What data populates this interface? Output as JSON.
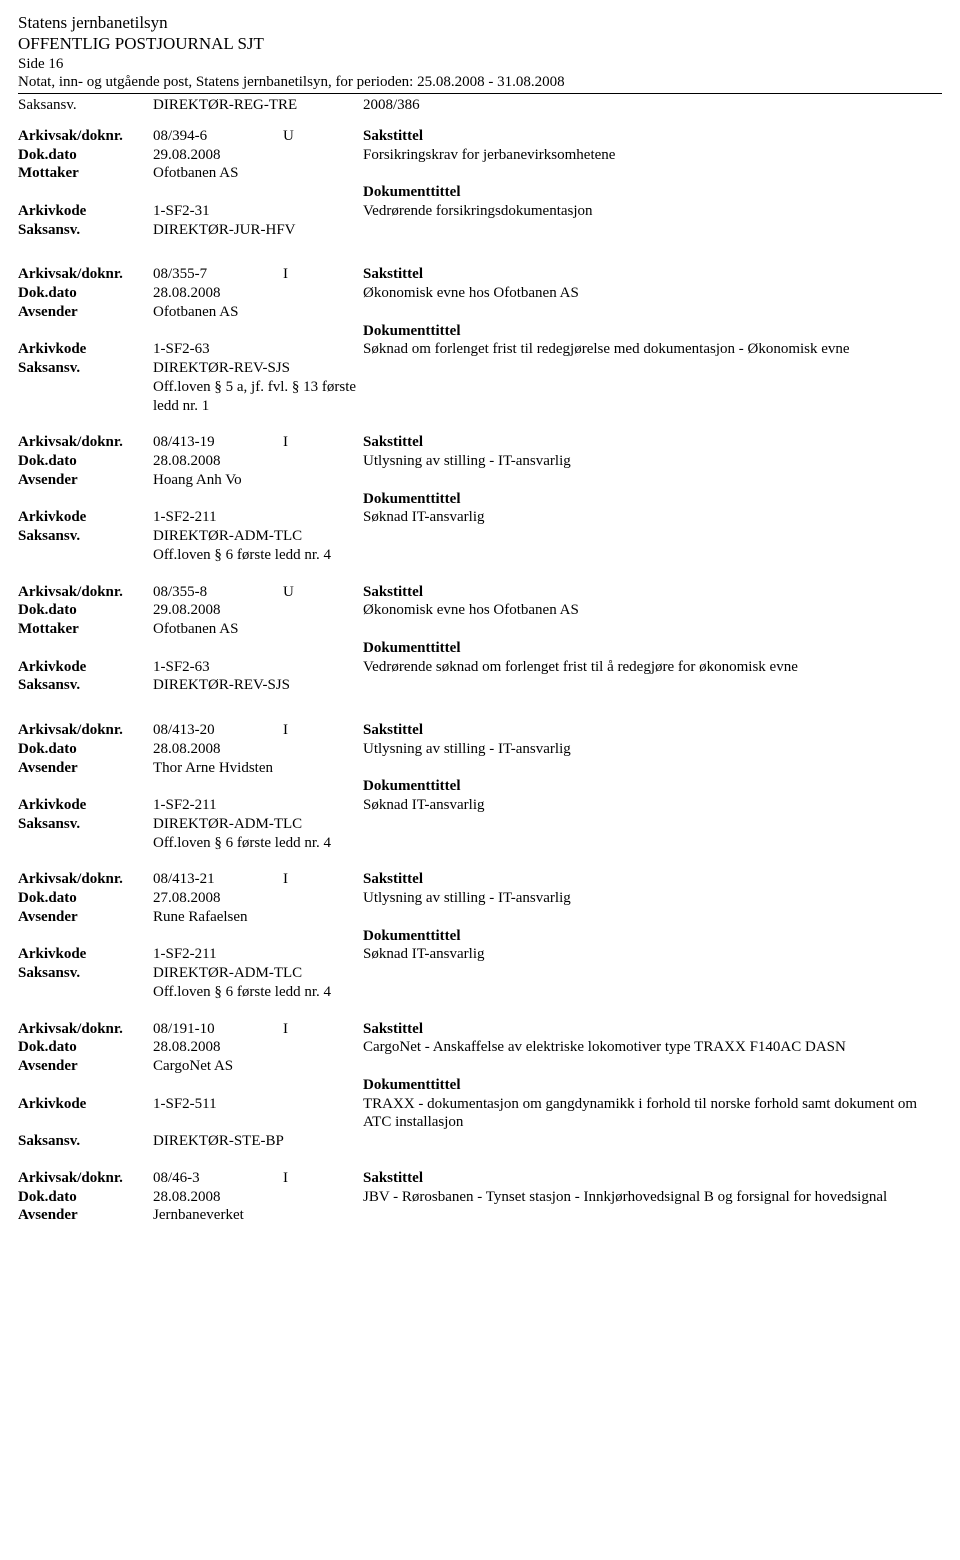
{
  "header": {
    "title": "Statens jernbanetilsyn",
    "subtitle": "OFFENTLIG POSTJOURNAL SJT",
    "side": "Side 16",
    "notat": "Notat, inn- og utgående post, Statens jernbanetilsyn, for perioden: 25.08.2008 - 31.08.2008"
  },
  "labels": {
    "saksansv": "Saksansv.",
    "arkivsak": "Arkivsak/doknr.",
    "dokdato": "Dok.dato",
    "mottaker": "Mottaker",
    "avsender": "Avsender",
    "arkivkode": "Arkivkode",
    "sakstittel": "Sakstittel",
    "dokumenttittel": "Dokumenttittel"
  },
  "topSaksansv": {
    "value": "DIREKTØR-REG-TRE",
    "code": "2008/386"
  },
  "entries": [
    {
      "arkivsak": "08/394-6",
      "dir": "U",
      "dokdato": "29.08.2008",
      "partyLabel": "Mottaker",
      "party": "Ofotbanen AS",
      "arkivkode": "1-SF2-31",
      "saksansv": "DIREKTØR-JUR-HFV",
      "offloven": "",
      "sakstittel": "Forsikringskrav for jerbanevirksomhetene",
      "doktittel": "Vedrørende forsikringsdokumentasjon",
      "spacerAfter": true
    },
    {
      "arkivsak": "08/355-7",
      "dir": "I",
      "dokdato": "28.08.2008",
      "partyLabel": "Avsender",
      "party": "Ofotbanen AS",
      "arkivkode": "1-SF2-63",
      "saksansv": "DIREKTØR-REV-SJS",
      "offloven": "Off.loven § 5 a, jf. fvl. § 13 første ledd nr. 1",
      "sakstittel": "Økonomisk evne hos Ofotbanen AS",
      "doktittel": "Søknad om forlenget frist til redegjørelse med dokumentasjon - Økonomisk evne",
      "spacerAfter": false
    },
    {
      "arkivsak": "08/413-19",
      "dir": "I",
      "dokdato": "28.08.2008",
      "partyLabel": "Avsender",
      "party": "Hoang Anh Vo",
      "arkivkode": "1-SF2-211",
      "saksansv": "DIREKTØR-ADM-TLC",
      "offloven": "Off.loven § 6 første ledd nr. 4",
      "sakstittel": "Utlysning av stilling - IT-ansvarlig",
      "doktittel": "Søknad IT-ansvarlig",
      "spacerAfter": false
    },
    {
      "arkivsak": "08/355-8",
      "dir": "U",
      "dokdato": "29.08.2008",
      "partyLabel": "Mottaker",
      "party": "Ofotbanen AS",
      "arkivkode": "1-SF2-63",
      "saksansv": "DIREKTØR-REV-SJS",
      "offloven": "",
      "sakstittel": "Økonomisk evne hos Ofotbanen AS",
      "doktittel": "Vedrørende søknad om forlenget frist til å redegjøre for økonomisk evne",
      "spacerAfter": true
    },
    {
      "arkivsak": "08/413-20",
      "dir": "I",
      "dokdato": "28.08.2008",
      "partyLabel": "Avsender",
      "party": "Thor Arne Hvidsten",
      "arkivkode": "1-SF2-211",
      "saksansv": "DIREKTØR-ADM-TLC",
      "offloven": "Off.loven § 6 første ledd nr. 4",
      "sakstittel": "Utlysning av stilling - IT-ansvarlig",
      "doktittel": "Søknad IT-ansvarlig",
      "spacerAfter": false
    },
    {
      "arkivsak": "08/413-21",
      "dir": "I",
      "dokdato": "27.08.2008",
      "partyLabel": "Avsender",
      "party": "Rune Rafaelsen",
      "arkivkode": "1-SF2-211",
      "saksansv": "DIREKTØR-ADM-TLC",
      "offloven": "Off.loven § 6 første ledd nr. 4",
      "sakstittel": "Utlysning av stilling - IT-ansvarlig",
      "doktittel": "Søknad IT-ansvarlig",
      "spacerAfter": false
    },
    {
      "arkivsak": "08/191-10",
      "dir": "I",
      "dokdato": "28.08.2008",
      "partyLabel": "Avsender",
      "party": "CargoNet AS",
      "arkivkode": "1-SF2-511",
      "saksansv": "DIREKTØR-STE-BP",
      "offloven": "",
      "sakstittel": "CargoNet - Anskaffelse av elektriske lokomotiver type TRAXX F140AC DASN",
      "doktittel": "TRAXX - dokumentasjon om gangdynamikk i forhold til norske forhold samt dokument om ATC installasjon",
      "spacerAfter": false
    },
    {
      "arkivsak": "08/46-3",
      "dir": "I",
      "dokdato": "28.08.2008",
      "partyLabel": "Avsender",
      "party": "Jernbaneverket",
      "arkivkode": "",
      "saksansv": "",
      "offloven": "",
      "sakstittel": "JBV - Rørosbanen - Tynset stasjon - Innkjørhovedsignal B og forsignal for hovedsignal",
      "doktittel": "",
      "spacerAfter": false,
      "partial": true
    }
  ]
}
